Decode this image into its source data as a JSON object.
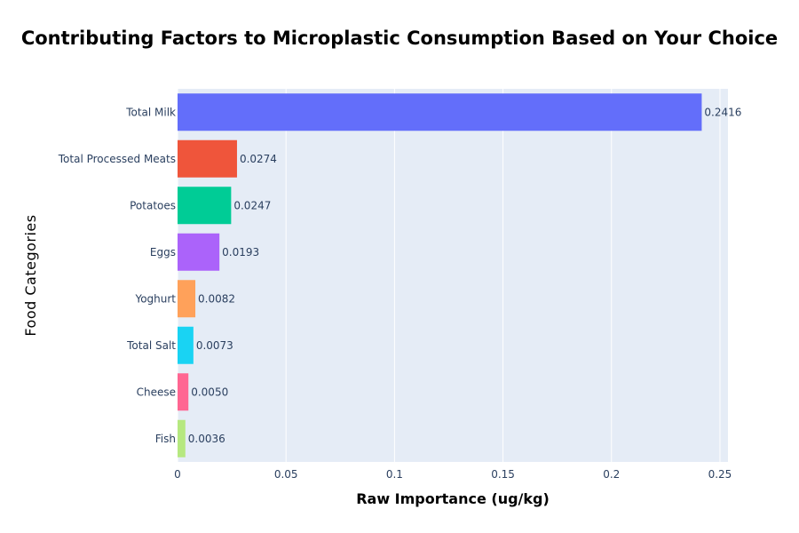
{
  "chart_data": {
    "type": "bar",
    "orientation": "horizontal",
    "title": "Contributing Factors to Microplastic Consumption Based on Your Choice",
    "xlabel": "Raw Importance (ug/kg)",
    "ylabel": "Food Categories",
    "categories": [
      "Total Milk",
      "Total Processed Meats",
      "Potatoes",
      "Eggs",
      "Yoghurt",
      "Total Salt",
      "Cheese",
      "Fish"
    ],
    "values": [
      0.2416,
      0.0274,
      0.0247,
      0.0193,
      0.0082,
      0.0073,
      0.005,
      0.0036
    ],
    "data_labels": [
      "0.2416",
      "0.0274",
      "0.0247",
      "0.0193",
      "0.0082",
      "0.0073",
      "0.0050",
      "0.0036"
    ],
    "colors": [
      "#636efa",
      "#EF553B",
      "#00cc96",
      "#ab63fa",
      "#FFA15A",
      "#19d3f3",
      "#FF6692",
      "#B6E880"
    ],
    "xlim": [
      0,
      0.2537
    ],
    "xticks": [
      0,
      0.05,
      0.1,
      0.15,
      0.2,
      0.25
    ],
    "xtick_labels": [
      "0",
      "0.05",
      "0.1",
      "0.15",
      "0.2",
      "0.25"
    ],
    "grid": true,
    "legend": "none",
    "plot_background": "#E5ECF6"
  }
}
